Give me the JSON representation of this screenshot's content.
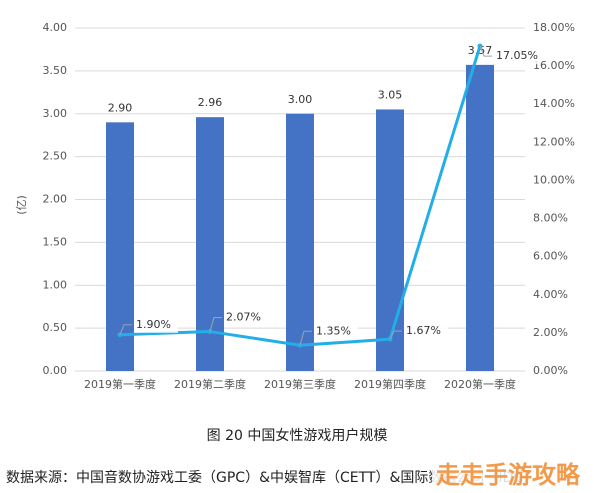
{
  "chart_data": {
    "type": "bar",
    "title": "",
    "categories": [
      "2019第一季度",
      "2019第二季度",
      "2019第三季度",
      "2019第四季度",
      "2020第一季度"
    ],
    "series": [
      {
        "type": "bar",
        "axis": "left",
        "values": [
          2.9,
          2.96,
          3.0,
          3.05,
          3.57
        ],
        "labels": [
          "2.90",
          "2.96",
          "3.00",
          "3.05",
          "3.57"
        ],
        "color": "#4472c4"
      },
      {
        "type": "line",
        "axis": "right",
        "values": [
          1.9,
          2.07,
          1.35,
          1.67,
          17.05
        ],
        "labels": [
          "1.90%",
          "2.07%",
          "1.35%",
          "1.67%",
          "17.05%"
        ],
        "color": "#22aee8"
      }
    ],
    "ylabel": "(亿)",
    "ylim": [
      0,
      4.0
    ],
    "y2lim": [
      0,
      18
    ],
    "yticks": [
      "0.00",
      "0.50",
      "1.00",
      "1.50",
      "2.00",
      "2.50",
      "3.00",
      "3.50",
      "4.00"
    ],
    "y2ticks": [
      "0.00%",
      "2.00%",
      "4.00%",
      "6.00%",
      "8.00%",
      "10.00%",
      "12.00%",
      "14.00%",
      "16.00%",
      "18.00%"
    ],
    "grid": true
  },
  "caption": "图 20  中国女性游戏用户规模",
  "source": "数据来源：中国音数协游戏工委（GPC）&中娱智库（CETT）&国际数据公司（IDC）",
  "watermark": "走走手游攻略"
}
